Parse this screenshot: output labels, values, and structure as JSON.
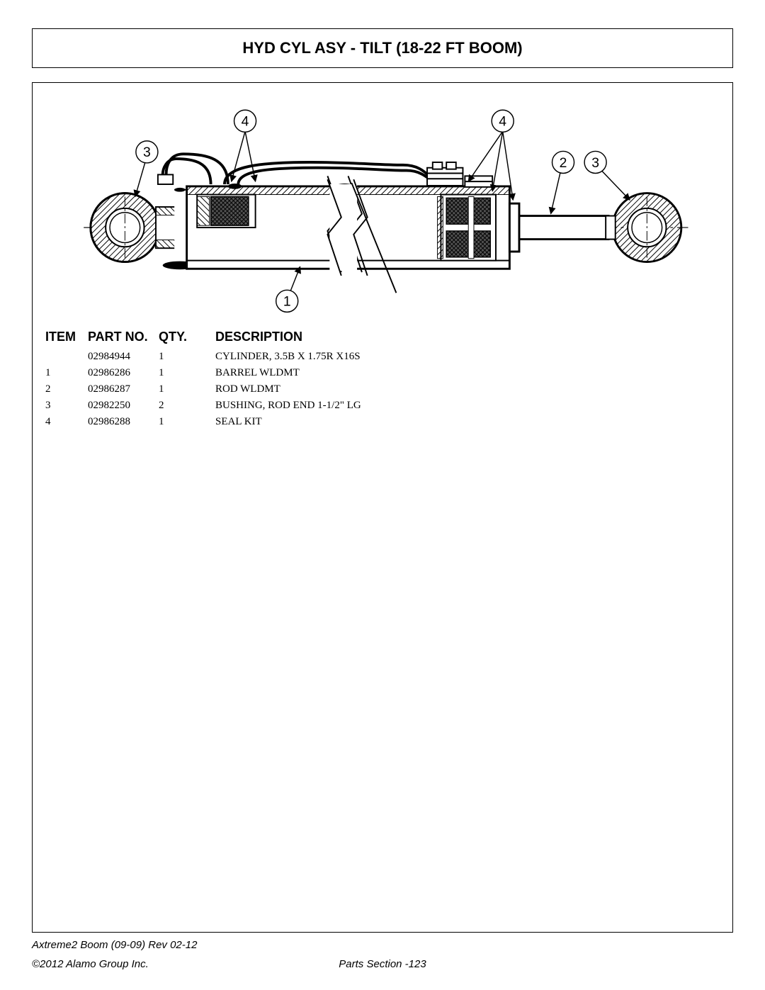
{
  "title": "HYD CYL ASY - TILT (18-22 FT BOOM)",
  "diagram": {
    "callouts": [
      "1",
      "2",
      "3",
      "4",
      "4",
      "3"
    ],
    "stroke": "#000000",
    "fill_hatch": "#000000",
    "background": "#ffffff",
    "callout_fontsize": 20
  },
  "table": {
    "headers": {
      "item": "ITEM",
      "part": "PART NO.",
      "qty": "QTY.",
      "desc": "DESCRIPTION"
    },
    "rows": [
      {
        "item": "",
        "part": "02984944",
        "qty": "1",
        "desc": "CYLINDER, 3.5B X 1.75R X16S"
      },
      {
        "item": "1",
        "part": "02986286",
        "qty": "1",
        "desc": "BARREL WLDMT"
      },
      {
        "item": "2",
        "part": "02986287",
        "qty": "1",
        "desc": "ROD WLDMT"
      },
      {
        "item": "3",
        "part": "02982250",
        "qty": "2",
        "desc": "BUSHING, ROD END 1-1/2\" LG"
      },
      {
        "item": "4",
        "part": "02986288",
        "qty": "1",
        "desc": "SEAL KIT"
      }
    ]
  },
  "footer": {
    "rev": "Axtreme2 Boom (09-09) Rev 02-12",
    "copy": "©2012 Alamo Group Inc.",
    "section": "Parts Section -123"
  }
}
